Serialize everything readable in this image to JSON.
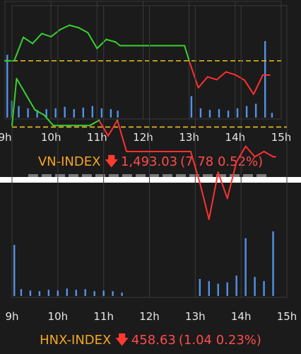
{
  "chart_data": [
    {
      "type": "line",
      "index_name": "VN-INDEX",
      "direction_icon": "arrow-down-icon",
      "value_text": "1,493.03",
      "change_text": "(7.78 0.52%)",
      "x_ticks": [
        "9h",
        "10h",
        "11h",
        "12h",
        "13h",
        "14h",
        "15h"
      ],
      "x": [
        9.0,
        9.2,
        9.4,
        9.6,
        9.8,
        10.0,
        10.2,
        10.4,
        10.6,
        10.8,
        11.0,
        11.2,
        11.4,
        11.5,
        12.0,
        12.9,
        13.0,
        13.2,
        13.4,
        13.6,
        13.8,
        14.0,
        14.2,
        14.4,
        14.6,
        14.75
      ],
      "values": [
        1500.8,
        1500.8,
        1508.4,
        1506.4,
        1509.6,
        1508.6,
        1510.9,
        1512.3,
        1511.5,
        1509.9,
        1504.8,
        1507.7,
        1506.9,
        1505.7,
        1505.7,
        1505.7,
        1500.8,
        1492.1,
        1495.6,
        1494.7,
        1497.2,
        1496.3,
        1494.6,
        1490.0,
        1496.2,
        1496.2
      ],
      "reference": 1500.8,
      "y_range": [
        1482.0,
        1520.0
      ],
      "volume": {
        "x": [
          9.05,
          9.15,
          9.3,
          9.5,
          9.7,
          9.9,
          10.1,
          10.3,
          10.5,
          10.7,
          10.9,
          11.1,
          11.3,
          11.45,
          13.05,
          13.25,
          13.45,
          13.65,
          13.85,
          14.05,
          14.25,
          14.45,
          14.65,
          14.8
        ],
        "values": [
          0.82,
          0.22,
          0.15,
          0.12,
          0.1,
          0.11,
          0.12,
          0.14,
          0.11,
          0.13,
          0.15,
          0.12,
          0.11,
          0.09,
          0.28,
          0.12,
          0.1,
          0.11,
          0.09,
          0.12,
          0.15,
          0.18,
          1.0,
          0.06
        ]
      },
      "colors": {
        "above": "#38d030",
        "below": "#ff3030",
        "reference": "#f0c020",
        "volume": "#5aa0ff",
        "grid": "#3a3a3a"
      }
    },
    {
      "type": "line",
      "index_name": "HNX-INDEX",
      "direction_icon": "arrow-down-icon",
      "value_text": "458.63",
      "change_text": "(1.04 0.23%)",
      "x_ticks": [
        "9h",
        "10h",
        "11h",
        "12h",
        "13h",
        "14h",
        "15h"
      ],
      "x": [
        9.0,
        9.1,
        9.3,
        9.5,
        9.7,
        9.9,
        10.1,
        10.3,
        10.5,
        10.7,
        10.9,
        11.1,
        11.3,
        11.5,
        12.0,
        12.9,
        13.0,
        13.1,
        13.3,
        13.5,
        13.7,
        13.9,
        14.1,
        14.3,
        14.5,
        14.7,
        14.75
      ],
      "values": [
        459.7,
        460.6,
        460.3,
        460.0,
        459.9,
        459.7,
        459.7,
        459.7,
        459.7,
        459.7,
        459.8,
        459.5,
        459.8,
        459.2,
        459.2,
        459.2,
        458.9,
        458.6,
        457.9,
        458.8,
        458.3,
        459.0,
        459.3,
        459.1,
        459.2,
        459.1,
        459.1
      ],
      "reference": 459.67,
      "y_range": [
        456.4,
        462.0
      ],
      "volume": {
        "x": [
          9.05,
          9.2,
          9.4,
          9.6,
          9.8,
          10.0,
          10.2,
          10.4,
          10.6,
          10.8,
          11.0,
          11.2,
          11.4,
          13.1,
          13.3,
          13.5,
          13.7,
          13.9,
          14.1,
          14.3,
          14.5,
          14.7
        ],
        "values": [
          0.75,
          0.1,
          0.08,
          0.07,
          0.09,
          0.08,
          0.11,
          0.09,
          0.1,
          0.07,
          0.08,
          0.07,
          0.05,
          0.25,
          0.22,
          0.18,
          0.2,
          0.3,
          0.85,
          0.28,
          0.22,
          0.95
        ]
      },
      "colors": {
        "above": "#38d030",
        "below": "#ff3030",
        "reference": "#f0c020",
        "volume": "#5aa0ff",
        "grid": "#3a3a3a"
      }
    }
  ]
}
